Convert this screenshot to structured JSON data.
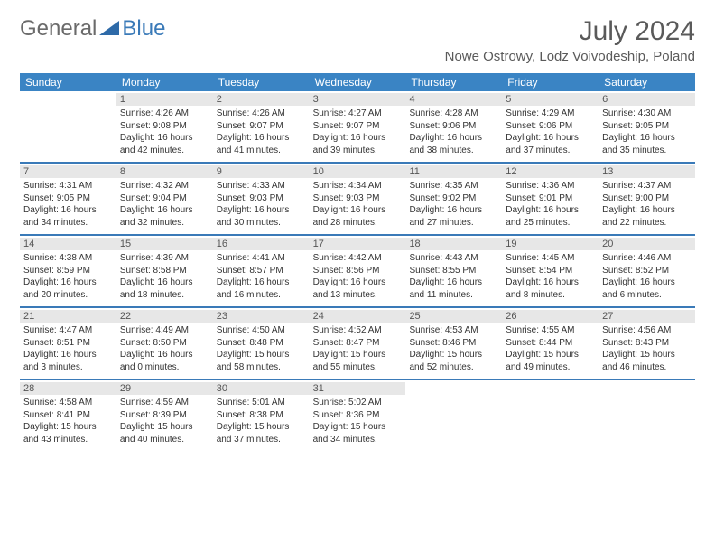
{
  "brand": {
    "general": "General",
    "blue": "Blue"
  },
  "title": "July 2024",
  "location": "Nowe Ostrowy, Lodz Voivodeship, Poland",
  "colors": {
    "header_bg": "#3a84c4",
    "row_divider": "#3a7ab8",
    "daynum_bg": "#e7e7e7",
    "text": "#333333",
    "title_text": "#5a5a5a"
  },
  "weekdays": [
    "Sunday",
    "Monday",
    "Tuesday",
    "Wednesday",
    "Thursday",
    "Friday",
    "Saturday"
  ],
  "weeks": [
    [
      {
        "n": "",
        "sr": "",
        "ss": "",
        "dl": ""
      },
      {
        "n": "1",
        "sr": "Sunrise: 4:26 AM",
        "ss": "Sunset: 9:08 PM",
        "dl": "Daylight: 16 hours and 42 minutes."
      },
      {
        "n": "2",
        "sr": "Sunrise: 4:26 AM",
        "ss": "Sunset: 9:07 PM",
        "dl": "Daylight: 16 hours and 41 minutes."
      },
      {
        "n": "3",
        "sr": "Sunrise: 4:27 AM",
        "ss": "Sunset: 9:07 PM",
        "dl": "Daylight: 16 hours and 39 minutes."
      },
      {
        "n": "4",
        "sr": "Sunrise: 4:28 AM",
        "ss": "Sunset: 9:06 PM",
        "dl": "Daylight: 16 hours and 38 minutes."
      },
      {
        "n": "5",
        "sr": "Sunrise: 4:29 AM",
        "ss": "Sunset: 9:06 PM",
        "dl": "Daylight: 16 hours and 37 minutes."
      },
      {
        "n": "6",
        "sr": "Sunrise: 4:30 AM",
        "ss": "Sunset: 9:05 PM",
        "dl": "Daylight: 16 hours and 35 minutes."
      }
    ],
    [
      {
        "n": "7",
        "sr": "Sunrise: 4:31 AM",
        "ss": "Sunset: 9:05 PM",
        "dl": "Daylight: 16 hours and 34 minutes."
      },
      {
        "n": "8",
        "sr": "Sunrise: 4:32 AM",
        "ss": "Sunset: 9:04 PM",
        "dl": "Daylight: 16 hours and 32 minutes."
      },
      {
        "n": "9",
        "sr": "Sunrise: 4:33 AM",
        "ss": "Sunset: 9:03 PM",
        "dl": "Daylight: 16 hours and 30 minutes."
      },
      {
        "n": "10",
        "sr": "Sunrise: 4:34 AM",
        "ss": "Sunset: 9:03 PM",
        "dl": "Daylight: 16 hours and 28 minutes."
      },
      {
        "n": "11",
        "sr": "Sunrise: 4:35 AM",
        "ss": "Sunset: 9:02 PM",
        "dl": "Daylight: 16 hours and 27 minutes."
      },
      {
        "n": "12",
        "sr": "Sunrise: 4:36 AM",
        "ss": "Sunset: 9:01 PM",
        "dl": "Daylight: 16 hours and 25 minutes."
      },
      {
        "n": "13",
        "sr": "Sunrise: 4:37 AM",
        "ss": "Sunset: 9:00 PM",
        "dl": "Daylight: 16 hours and 22 minutes."
      }
    ],
    [
      {
        "n": "14",
        "sr": "Sunrise: 4:38 AM",
        "ss": "Sunset: 8:59 PM",
        "dl": "Daylight: 16 hours and 20 minutes."
      },
      {
        "n": "15",
        "sr": "Sunrise: 4:39 AM",
        "ss": "Sunset: 8:58 PM",
        "dl": "Daylight: 16 hours and 18 minutes."
      },
      {
        "n": "16",
        "sr": "Sunrise: 4:41 AM",
        "ss": "Sunset: 8:57 PM",
        "dl": "Daylight: 16 hours and 16 minutes."
      },
      {
        "n": "17",
        "sr": "Sunrise: 4:42 AM",
        "ss": "Sunset: 8:56 PM",
        "dl": "Daylight: 16 hours and 13 minutes."
      },
      {
        "n": "18",
        "sr": "Sunrise: 4:43 AM",
        "ss": "Sunset: 8:55 PM",
        "dl": "Daylight: 16 hours and 11 minutes."
      },
      {
        "n": "19",
        "sr": "Sunrise: 4:45 AM",
        "ss": "Sunset: 8:54 PM",
        "dl": "Daylight: 16 hours and 8 minutes."
      },
      {
        "n": "20",
        "sr": "Sunrise: 4:46 AM",
        "ss": "Sunset: 8:52 PM",
        "dl": "Daylight: 16 hours and 6 minutes."
      }
    ],
    [
      {
        "n": "21",
        "sr": "Sunrise: 4:47 AM",
        "ss": "Sunset: 8:51 PM",
        "dl": "Daylight: 16 hours and 3 minutes."
      },
      {
        "n": "22",
        "sr": "Sunrise: 4:49 AM",
        "ss": "Sunset: 8:50 PM",
        "dl": "Daylight: 16 hours and 0 minutes."
      },
      {
        "n": "23",
        "sr": "Sunrise: 4:50 AM",
        "ss": "Sunset: 8:48 PM",
        "dl": "Daylight: 15 hours and 58 minutes."
      },
      {
        "n": "24",
        "sr": "Sunrise: 4:52 AM",
        "ss": "Sunset: 8:47 PM",
        "dl": "Daylight: 15 hours and 55 minutes."
      },
      {
        "n": "25",
        "sr": "Sunrise: 4:53 AM",
        "ss": "Sunset: 8:46 PM",
        "dl": "Daylight: 15 hours and 52 minutes."
      },
      {
        "n": "26",
        "sr": "Sunrise: 4:55 AM",
        "ss": "Sunset: 8:44 PM",
        "dl": "Daylight: 15 hours and 49 minutes."
      },
      {
        "n": "27",
        "sr": "Sunrise: 4:56 AM",
        "ss": "Sunset: 8:43 PM",
        "dl": "Daylight: 15 hours and 46 minutes."
      }
    ],
    [
      {
        "n": "28",
        "sr": "Sunrise: 4:58 AM",
        "ss": "Sunset: 8:41 PM",
        "dl": "Daylight: 15 hours and 43 minutes."
      },
      {
        "n": "29",
        "sr": "Sunrise: 4:59 AM",
        "ss": "Sunset: 8:39 PM",
        "dl": "Daylight: 15 hours and 40 minutes."
      },
      {
        "n": "30",
        "sr": "Sunrise: 5:01 AM",
        "ss": "Sunset: 8:38 PM",
        "dl": "Daylight: 15 hours and 37 minutes."
      },
      {
        "n": "31",
        "sr": "Sunrise: 5:02 AM",
        "ss": "Sunset: 8:36 PM",
        "dl": "Daylight: 15 hours and 34 minutes."
      },
      {
        "n": "",
        "sr": "",
        "ss": "",
        "dl": ""
      },
      {
        "n": "",
        "sr": "",
        "ss": "",
        "dl": ""
      },
      {
        "n": "",
        "sr": "",
        "ss": "",
        "dl": ""
      }
    ]
  ]
}
